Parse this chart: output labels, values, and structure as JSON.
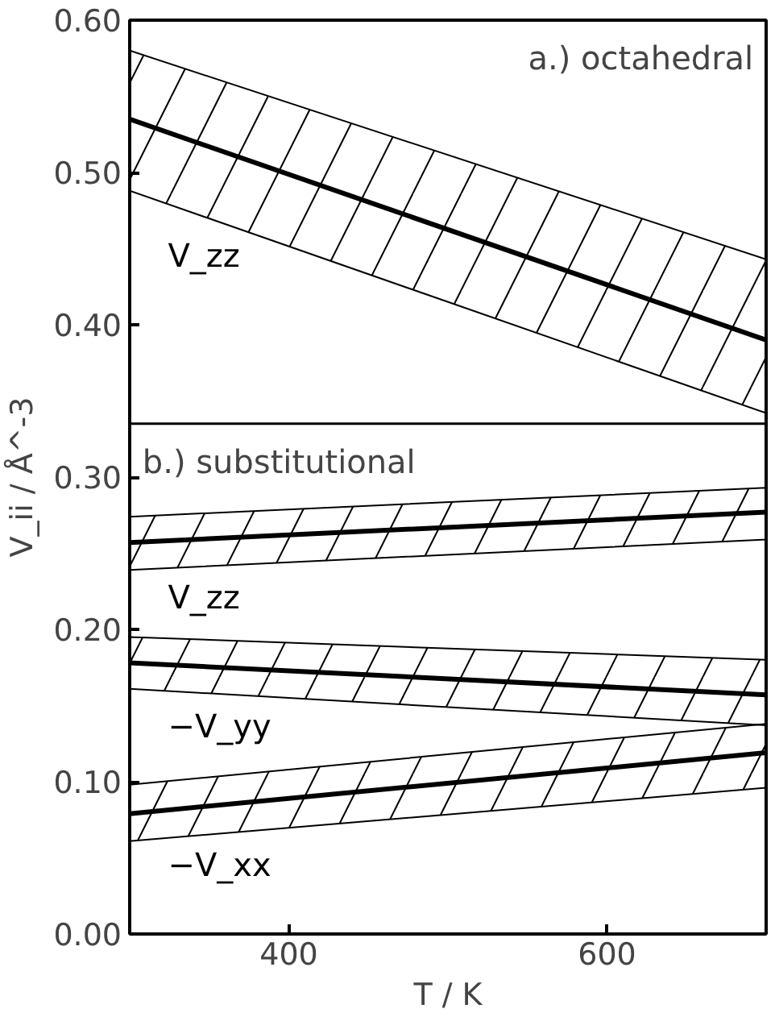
{
  "chart_data": {
    "type": "line",
    "xlabel": "T / K",
    "ylabel": "V_ii / Å^-3",
    "x": [
      300,
      700
    ],
    "xlim": [
      300,
      700
    ],
    "xticks": [
      400,
      600
    ],
    "ylim": [
      0,
      0.6
    ],
    "yticks": [
      {
        "value": 0,
        "label": "0.00"
      },
      {
        "value": 0.1,
        "label": "0.10"
      },
      {
        "value": 0.2,
        "label": "0.20"
      },
      {
        "value": 0.3,
        "label": "0.30"
      },
      {
        "value": 0.4,
        "label": "0.40"
      },
      {
        "value": 0.5,
        "label": "0.50"
      },
      {
        "value": 0.6,
        "label": "0.60"
      }
    ],
    "series": [
      {
        "name": "V_zz",
        "color": "#000000",
        "values": [
          0.535,
          0.39
        ],
        "lower": [
          0.488,
          0.342
        ],
        "upper": [
          0.58,
          0.443
        ]
      },
      {
        "name": "V_zz",
        "color": "#000000",
        "values": [
          0.257,
          0.277
        ],
        "lower": [
          0.239,
          0.259
        ],
        "upper": [
          0.274,
          0.293
        ]
      },
      {
        "name": "−V_yy",
        "color": "#000000",
        "values": [
          0.178,
          0.157
        ],
        "lower": [
          0.161,
          0.137
        ],
        "upper": [
          0.195,
          0.18
        ]
      },
      {
        "name": "−V_xx",
        "color": "#000000",
        "values": [
          0.079,
          0.119
        ],
        "lower": [
          0.061,
          0.096
        ],
        "upper": [
          0.098,
          0.138
        ]
      }
    ],
    "ref_lines": [
      {
        "axis": "y",
        "value": 0.335,
        "color": "#000000"
      }
    ],
    "annotations": [
      "a.) octahedral",
      "b.) substitutional"
    ],
    "grid": false,
    "legend": false,
    "line_style": "solid",
    "marker": "none"
  }
}
